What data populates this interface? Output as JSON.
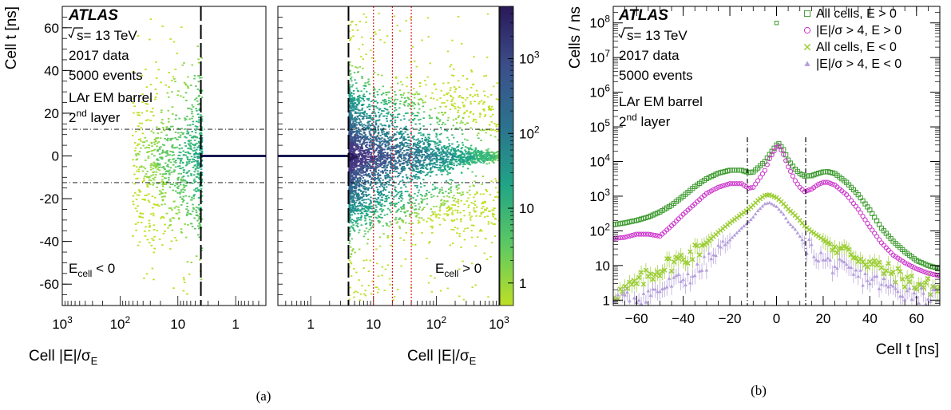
{
  "captions": {
    "a": "(a)",
    "b": "(b)"
  },
  "annotation": {
    "atlas": "ATLAS",
    "sqrt_s": "= 13 TeV",
    "s_symbol": "s",
    "data_year": "2017 data",
    "events": "5000 events",
    "detector": "LAr EM barrel",
    "layer_num": "2",
    "layer_sup": "nd",
    "layer_word": " layer"
  },
  "colors": {
    "e_pos_all": "#3c9a2e",
    "e_pos_sig": "#cc33cc",
    "e_neg_all": "#9acd32",
    "e_neg_sig": "#b39ddb",
    "viridis_low": "#bddf26",
    "viridis_high": "#2a1858",
    "red_lines": "#dd2222"
  },
  "chart_data": [
    {
      "id": "a-left",
      "type": "heatmap",
      "title": "",
      "xlabel": "Cell |E|/σ_E",
      "xlabel_main": "Cell |E|/σ",
      "xlabel_sub": "E",
      "ylabel": "Cell t [ns]",
      "xscale": "log-reversed",
      "xlim": [
        1000,
        0.3
      ],
      "ylim": [
        -70,
        70
      ],
      "xticks": [
        {
          "v": 1000,
          "base": "10",
          "exp": "3"
        },
        {
          "v": 100,
          "base": "10",
          "exp": "2"
        },
        {
          "v": 10,
          "base": "10",
          "exp": ""
        },
        {
          "v": 1,
          "base": "1",
          "exp": ""
        }
      ],
      "yticks": [
        -60,
        -40,
        -20,
        0,
        20,
        40,
        60
      ],
      "region_label": "E",
      "region_sub": "cell",
      "region_rel": " < 0",
      "dashed_vline": 4,
      "dashdot_hlines": [
        12.5,
        -12.5
      ],
      "band": {
        "t": 0,
        "from": 4,
        "to": 0.3
      }
    },
    {
      "id": "a-right",
      "type": "heatmap",
      "title": "",
      "xlabel": "Cell |E|/σ_E",
      "xlabel_main": "Cell |E|/σ",
      "xlabel_sub": "E",
      "xscale": "log",
      "xlim": [
        0.3,
        1000
      ],
      "ylim": [
        -70,
        70
      ],
      "xticks": [
        {
          "v": 1,
          "base": "1",
          "exp": ""
        },
        {
          "v": 10,
          "base": "10",
          "exp": ""
        },
        {
          "v": 100,
          "base": "10",
          "exp": "2"
        },
        {
          "v": 1000,
          "base": "10",
          "exp": "3"
        }
      ],
      "region_label": "E",
      "region_sub": "cell",
      "region_rel": " > 0",
      "dashed_vline": 4,
      "red_dotted_vlines": [
        10,
        20,
        40
      ],
      "dashdot_hlines": [
        12.5,
        -12.5
      ],
      "band": {
        "t": 0,
        "from": 0.3,
        "to": 4
      },
      "colorbar": {
        "scale": "log",
        "range": [
          0.5,
          5000
        ],
        "ticks": [
          {
            "v": 1,
            "base": "1",
            "exp": ""
          },
          {
            "v": 10,
            "base": "10",
            "exp": ""
          },
          {
            "v": 100,
            "base": "10",
            "exp": "2"
          },
          {
            "v": 1000,
            "base": "10",
            "exp": "3"
          }
        ]
      }
    },
    {
      "id": "b",
      "type": "scatter",
      "title": "",
      "xlabel": "Cell t [ns]",
      "ylabel": "Cells / ns",
      "yscale": "log",
      "xlim": [
        -70,
        70
      ],
      "ylim": [
        0.7,
        300000000
      ],
      "xticks": [
        -60,
        -40,
        -20,
        0,
        20,
        40,
        60
      ],
      "yticks": [
        {
          "v": 1,
          "base": "1",
          "exp": ""
        },
        {
          "v": 10,
          "base": "10",
          "exp": ""
        },
        {
          "v": 100,
          "base": "10",
          "exp": "2"
        },
        {
          "v": 1000,
          "base": "10",
          "exp": "3"
        },
        {
          "v": 10000,
          "base": "10",
          "exp": "4"
        },
        {
          "v": 100000,
          "base": "10",
          "exp": "5"
        },
        {
          "v": 1000000,
          "base": "10",
          "exp": "6"
        },
        {
          "v": 10000000,
          "base": "10",
          "exp": "7"
        },
        {
          "v": 100000000,
          "base": "10",
          "exp": "8"
        }
      ],
      "dashdot_vlines": [
        -12.5,
        12.5
      ],
      "legend_position": "top-right",
      "legend": [
        {
          "key": "pos_all",
          "label": "All cells, E > 0"
        },
        {
          "key": "pos_sig",
          "label": "|E|/σ > 4, E > 0"
        },
        {
          "key": "neg_all",
          "label": "All cells, E < 0"
        },
        {
          "key": "neg_sig",
          "label": "|E|/σ > 4, E < 0"
        }
      ],
      "x_nodes": [
        -70,
        -65,
        -60,
        -55,
        -50,
        -45,
        -40,
        -35,
        -30,
        -25,
        -20,
        -15,
        -12,
        -10,
        -8,
        -5,
        -3,
        0,
        1,
        3,
        5,
        8,
        10,
        12,
        15,
        18,
        20,
        22,
        25,
        30,
        35,
        40,
        45,
        50,
        55,
        60,
        65,
        70
      ],
      "series": [
        {
          "key": "pos_all",
          "name": "All cells, E > 0",
          "marker": "square",
          "values": [
            150,
            170,
            200,
            250,
            350,
            550,
            1000,
            1900,
            3200,
            4600,
            5600,
            5600,
            4800,
            5000,
            6500,
            10000,
            16000,
            30000,
            33000,
            22000,
            11000,
            6000,
            4500,
            3800,
            3900,
            4600,
            5000,
            5100,
            4500,
            2500,
            1100,
            400,
            120,
            50,
            25,
            14,
            10,
            8
          ]
        },
        {
          "key": "pos_sig",
          "name": "|E|/σ > 4, E > 0",
          "marker": "circle",
          "values": [
            60,
            65,
            80,
            80,
            70,
            140,
            300,
            600,
            1200,
            1800,
            2300,
            2300,
            1700,
            1800,
            2800,
            5500,
            12000,
            26000,
            28000,
            16000,
            7000,
            2800,
            1800,
            1350,
            1600,
            2200,
            2500,
            2500,
            2100,
            1100,
            420,
            130,
            45,
            20,
            12,
            8,
            6,
            5
          ]
        },
        {
          "key": "neg_all",
          "name": "All cells, E < 0",
          "marker": "x",
          "values": [
            1.5,
            1.8,
            3,
            5,
            8,
            12,
            16,
            25,
            45,
            90,
            170,
            300,
            420,
            550,
            750,
            1050,
            1100,
            900,
            800,
            600,
            420,
            280,
            200,
            140,
            95,
            70,
            55,
            45,
            35,
            25,
            18,
            12,
            8,
            6,
            4,
            3,
            2.5,
            2
          ]
        },
        {
          "key": "neg_sig",
          "name": "|E|/σ > 4, E < 0",
          "marker": "triangle",
          "values": [
            1,
            1,
            1.2,
            1.5,
            2,
            3,
            4,
            6,
            12,
            25,
            55,
            120,
            180,
            250,
            380,
            600,
            650,
            500,
            420,
            300,
            180,
            110,
            70,
            45,
            30,
            20,
            15,
            12,
            10,
            7,
            5,
            4,
            3,
            2,
            1.8,
            1.5,
            1.3,
            1.2
          ]
        }
      ],
      "outlier_point": {
        "series": "pos_all",
        "x": 0,
        "y": 100000000
      }
    }
  ]
}
